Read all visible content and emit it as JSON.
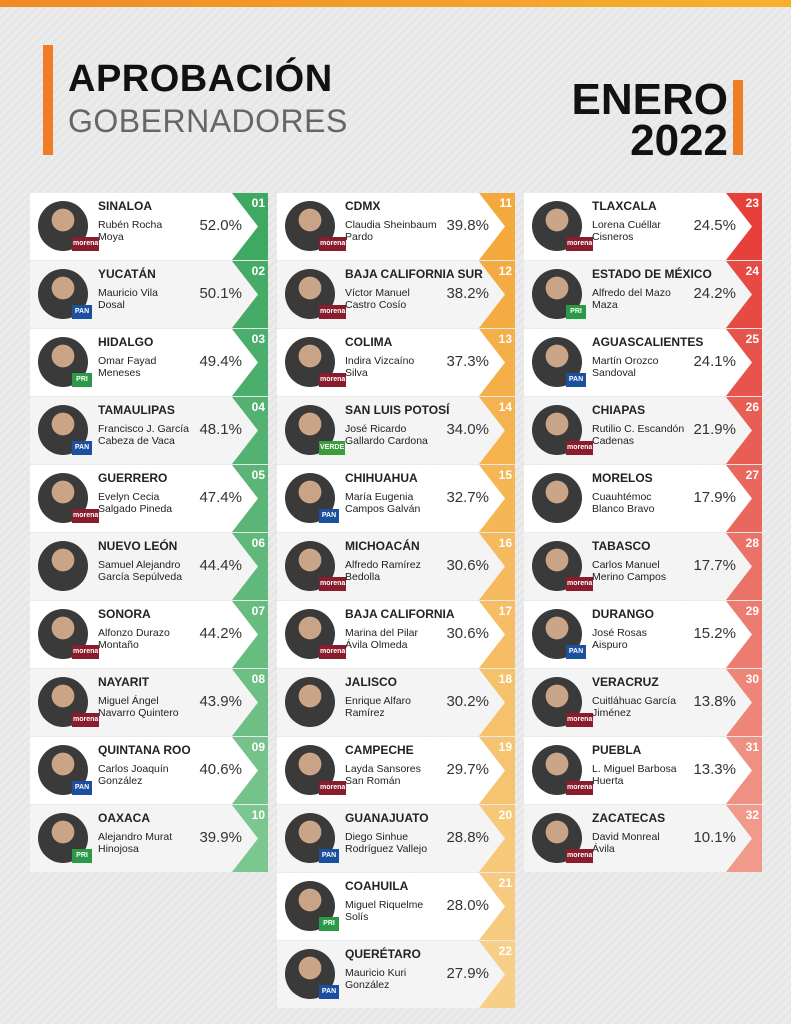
{
  "header": {
    "title": "APROBACIÓN",
    "subtitle": "GOBERNADORES",
    "month": "ENERO",
    "year": "2022"
  },
  "columns": [
    [
      {
        "rank": "01",
        "state": "SINALOA",
        "name": [
          "Rubén Rocha",
          "Moya"
        ],
        "approval": "52.0%",
        "party": "morena"
      },
      {
        "rank": "02",
        "state": "YUCATÁN",
        "name": [
          "Mauricio Vila",
          "Dosal"
        ],
        "approval": "50.1%",
        "party": "PAN"
      },
      {
        "rank": "03",
        "state": "HIDALGO",
        "name": [
          "Omar Fayad",
          "Meneses"
        ],
        "approval": "49.4%",
        "party": "PRI"
      },
      {
        "rank": "04",
        "state": "TAMAULIPAS",
        "name": [
          "Francisco J. García",
          "Cabeza de Vaca"
        ],
        "approval": "48.1%",
        "party": "PAN"
      },
      {
        "rank": "05",
        "state": "GUERRERO",
        "name": [
          "Evelyn Cecia",
          "Salgado Pineda"
        ],
        "approval": "47.4%",
        "party": "morena"
      },
      {
        "rank": "06",
        "state": "NUEVO LEÓN",
        "name": [
          "Samuel Alejandro",
          "García Sepúlveda"
        ],
        "approval": "44.4%"
      },
      {
        "rank": "07",
        "state": "SONORA",
        "name": [
          "Alfonzo Durazo",
          "Montaño"
        ],
        "approval": "44.2%",
        "party": "morena"
      },
      {
        "rank": "08",
        "state": "NAYARIT",
        "name": [
          "Miguel Ángel",
          "Navarro Quintero"
        ],
        "approval": "43.9%",
        "party": "morena"
      },
      {
        "rank": "09",
        "state": "QUINTANA ROO",
        "name": [
          "Carlos Joaquín",
          "González"
        ],
        "approval": "40.6%",
        "party": "PAN"
      },
      {
        "rank": "10",
        "state": "OAXACA",
        "name": [
          "Alejandro Murat",
          "Hinojosa"
        ],
        "approval": "39.9%",
        "party": "PRI"
      }
    ],
    [
      {
        "rank": "11",
        "state": "CDMX",
        "name": [
          "Claudia Sheinbaum",
          "Pardo"
        ],
        "approval": "39.8%",
        "party": "morena"
      },
      {
        "rank": "12",
        "state": "BAJA CALIFORNIA SUR",
        "name": [
          "Víctor Manuel",
          "Castro Cosío"
        ],
        "approval": "38.2%",
        "party": "morena"
      },
      {
        "rank": "13",
        "state": "COLIMA",
        "name": [
          "Indira Vizcaíno",
          "Silva"
        ],
        "approval": "37.3%",
        "party": "morena"
      },
      {
        "rank": "14",
        "state": "SAN LUIS POTOSÍ",
        "name": [
          "José Ricardo",
          "Gallardo Cardona"
        ],
        "approval": "34.0%",
        "party": "VERDE"
      },
      {
        "rank": "15",
        "state": "CHIHUAHUA",
        "name": [
          "María Eugenia",
          "Campos Galván"
        ],
        "approval": "32.7%",
        "party": "PAN"
      },
      {
        "rank": "16",
        "state": "MICHOACÁN",
        "name": [
          "Alfredo Ramírez",
          "Bedolla"
        ],
        "approval": "30.6%",
        "party": "morena"
      },
      {
        "rank": "17",
        "state": "BAJA CALIFORNIA",
        "name": [
          "Marina del Pilar",
          "Ávila Olmeda"
        ],
        "approval": "30.6%",
        "party": "morena"
      },
      {
        "rank": "18",
        "state": "JALISCO",
        "name": [
          "Enrique Alfaro",
          "Ramírez"
        ],
        "approval": "30.2%"
      },
      {
        "rank": "19",
        "state": "CAMPECHE",
        "name": [
          "Layda Sansores",
          "San Román"
        ],
        "approval": "29.7%",
        "party": "morena"
      },
      {
        "rank": "20",
        "state": "GUANAJUATO",
        "name": [
          "Diego Sinhue",
          "Rodríguez Vallejo"
        ],
        "approval": "28.8%",
        "party": "PAN"
      },
      {
        "rank": "21",
        "state": "COAHUILA",
        "name": [
          "Miguel Riquelme",
          "Solís"
        ],
        "approval": "28.0%",
        "party": "PRI"
      },
      {
        "rank": "22",
        "state": "QUERÉTARO",
        "name": [
          "Mauricio Kuri",
          "González"
        ],
        "approval": "27.9%",
        "party": "PAN"
      }
    ],
    [
      {
        "rank": "23",
        "state": "TLAXCALA",
        "name": [
          "Lorena Cuéllar",
          "Cisneros"
        ],
        "approval": "24.5%",
        "party": "morena"
      },
      {
        "rank": "24",
        "state": "ESTADO DE MÉXICO",
        "name": [
          "Alfredo del Mazo",
          "Maza"
        ],
        "approval": "24.2%",
        "party": "PRI"
      },
      {
        "rank": "25",
        "state": "AGUASCALIENTES",
        "name": [
          "Martín Orozco",
          "Sandoval"
        ],
        "approval": "24.1%",
        "party": "PAN"
      },
      {
        "rank": "26",
        "state": "CHIAPAS",
        "name": [
          "Rutilio C. Escandón",
          "Cadenas"
        ],
        "approval": "21.9%",
        "party": "morena"
      },
      {
        "rank": "27",
        "state": "MORELOS",
        "name": [
          "Cuauhtémoc",
          "Blanco Bravo"
        ],
        "approval": "17.9%"
      },
      {
        "rank": "28",
        "state": "TABASCO",
        "name": [
          "Carlos Manuel",
          "Merino Campos"
        ],
        "approval": "17.7%",
        "party": "morena"
      },
      {
        "rank": "29",
        "state": "DURANGO",
        "name": [
          "José Rosas",
          "Aispuro"
        ],
        "approval": "15.2%",
        "party": "PAN"
      },
      {
        "rank": "30",
        "state": "VERACRUZ",
        "name": [
          "Cuitláhuac García",
          "Jiménez"
        ],
        "approval": "13.8%",
        "party": "morena"
      },
      {
        "rank": "31",
        "state": "PUEBLA",
        "name": [
          "L. Miguel Barbosa",
          "Huerta"
        ],
        "approval": "13.3%",
        "party": "morena"
      },
      {
        "rank": "32",
        "state": "ZACATECAS",
        "name": [
          "David Monreal",
          "Ávila"
        ],
        "approval": "10.1%",
        "party": "morena"
      }
    ]
  ]
}
